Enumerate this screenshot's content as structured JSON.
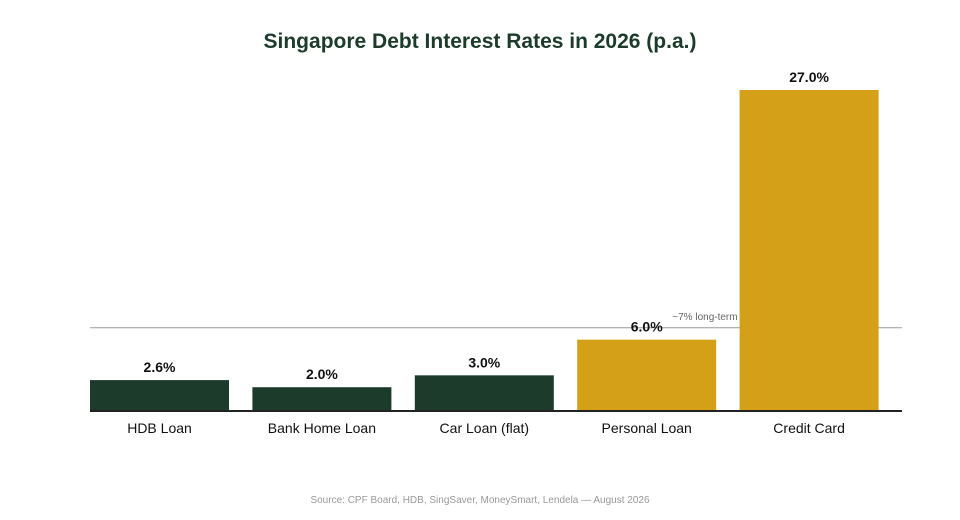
{
  "chart_data": {
    "type": "bar",
    "title": "Singapore Debt Interest Rates in 2026 (p.a.)",
    "categories": [
      "HDB Loan",
      "Bank Home Loan",
      "Car Loan (flat)",
      "Personal Loan",
      "Credit Card"
    ],
    "values": [
      2.6,
      2.0,
      3.0,
      6.0,
      27.0
    ],
    "value_labels": [
      "2.6%",
      "2.0%",
      "3.0%",
      "6.0%",
      "27.0%"
    ],
    "colors": [
      "#1c3b2b",
      "#1c3b2b",
      "#1c3b2b",
      "#d4a017",
      "#d4a017"
    ],
    "ylim": [
      0,
      27
    ],
    "reference_line": {
      "value": 7,
      "label": "~7% long-term",
      "color": "#999999"
    },
    "xlabel": "",
    "ylabel": "",
    "grid": false,
    "source": "Source: CPF Board, HDB, SingSaver, MoneySmart, Lendela — August 2026"
  },
  "colors": {
    "title": "#1c3b2b",
    "axis": "#222222"
  }
}
